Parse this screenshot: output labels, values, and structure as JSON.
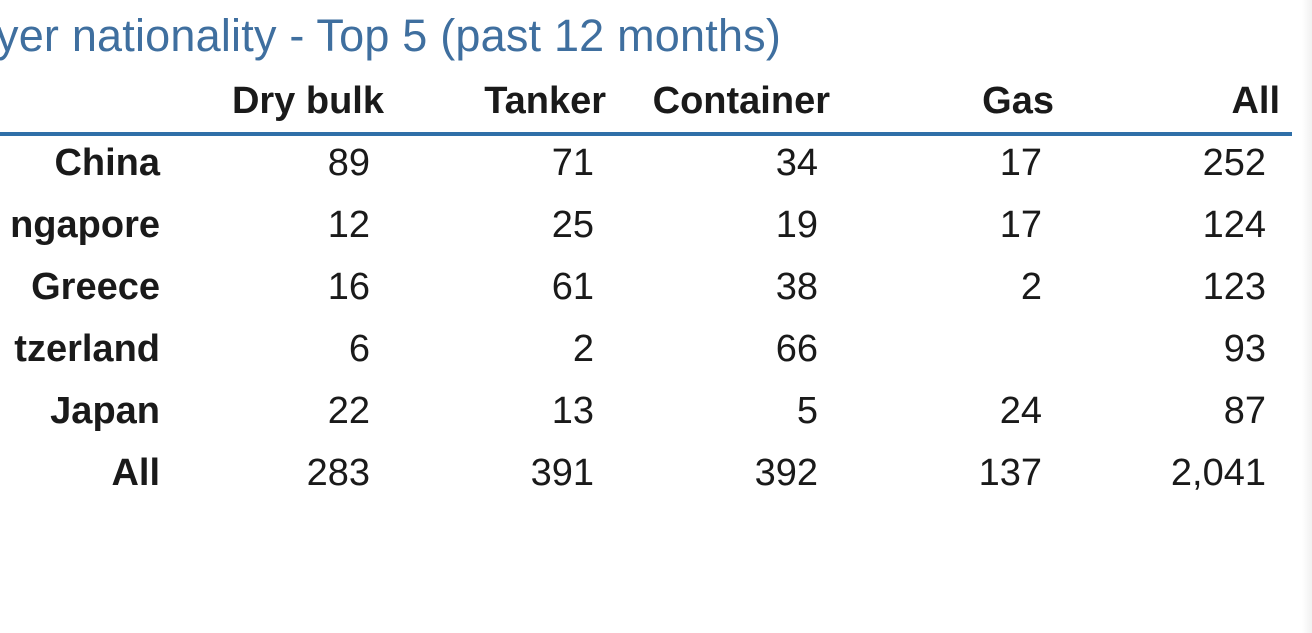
{
  "chart_data": {
    "type": "table",
    "title": "yer nationality - Top 5 (past 12 months)",
    "columns": [
      "Dry bulk",
      "Tanker",
      "Container",
      "Gas",
      "All"
    ],
    "rows": [
      {
        "label": "China",
        "values": [
          "89",
          "71",
          "34",
          "17",
          "252"
        ]
      },
      {
        "label": "ngapore",
        "values": [
          "12",
          "25",
          "19",
          "17",
          "124"
        ]
      },
      {
        "label": "Greece",
        "values": [
          "16",
          "61",
          "38",
          "2",
          "123"
        ]
      },
      {
        "label": "tzerland",
        "values": [
          "6",
          "2",
          "66",
          "",
          "93"
        ]
      },
      {
        "label": "Japan",
        "values": [
          "22",
          "13",
          "5",
          "24",
          "87"
        ]
      },
      {
        "label": "All",
        "values": [
          "283",
          "391",
          "392",
          "137",
          "2,041"
        ]
      }
    ]
  },
  "colors": {
    "title": "#3f6f9f",
    "rule": "#2f6fa8",
    "text": "#1a1a1a"
  }
}
